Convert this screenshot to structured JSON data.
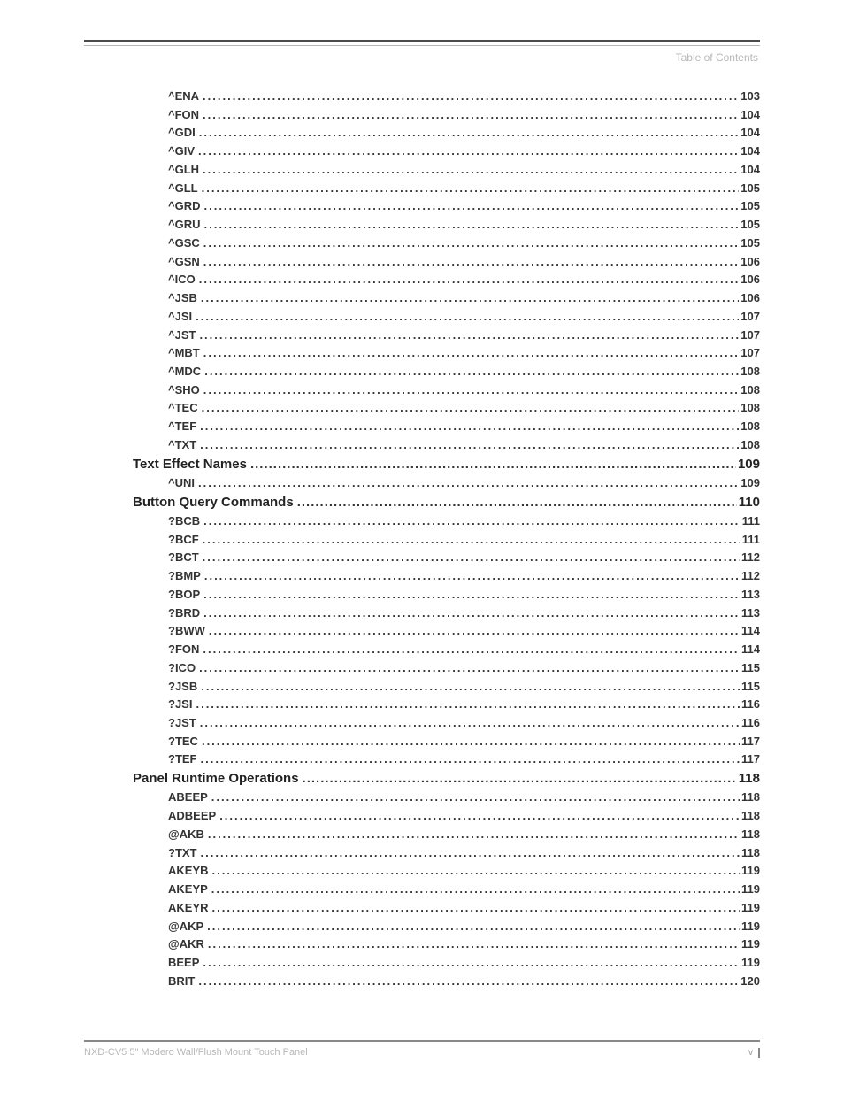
{
  "header": {
    "label": "Table of Contents"
  },
  "toc": {
    "entries": [
      {
        "level": 2,
        "label": "^ENA",
        "page": "103"
      },
      {
        "level": 2,
        "label": "^FON",
        "page": "104"
      },
      {
        "level": 2,
        "label": "^GDI",
        "page": "104"
      },
      {
        "level": 2,
        "label": "^GIV",
        "page": "104"
      },
      {
        "level": 2,
        "label": "^GLH",
        "page": "104"
      },
      {
        "level": 2,
        "label": "^GLL",
        "page": "105"
      },
      {
        "level": 2,
        "label": "^GRD",
        "page": "105"
      },
      {
        "level": 2,
        "label": "^GRU",
        "page": "105"
      },
      {
        "level": 2,
        "label": "^GSC",
        "page": "105"
      },
      {
        "level": 2,
        "label": "^GSN",
        "page": "106"
      },
      {
        "level": 2,
        "label": "^ICO",
        "page": "106"
      },
      {
        "level": 2,
        "label": "^JSB",
        "page": "106"
      },
      {
        "level": 2,
        "label": "^JSI",
        "page": "107"
      },
      {
        "level": 2,
        "label": "^JST",
        "page": "107"
      },
      {
        "level": 2,
        "label": "^MBT",
        "page": "107"
      },
      {
        "level": 2,
        "label": "^MDC",
        "page": "108"
      },
      {
        "level": 2,
        "label": "^SHO",
        "page": "108"
      },
      {
        "level": 2,
        "label": "^TEC",
        "page": "108"
      },
      {
        "level": 2,
        "label": "^TEF",
        "page": "108"
      },
      {
        "level": 2,
        "label": "^TXT",
        "page": "108"
      },
      {
        "level": 1,
        "label": "Text Effect Names",
        "page": "109"
      },
      {
        "level": 2,
        "label": "^UNI",
        "page": "109"
      },
      {
        "level": 1,
        "label": "Button Query Commands",
        "page": "110"
      },
      {
        "level": 2,
        "label": "?BCB",
        "page": "111"
      },
      {
        "level": 2,
        "label": "?BCF",
        "page": "111"
      },
      {
        "level": 2,
        "label": "?BCT",
        "page": "112"
      },
      {
        "level": 2,
        "label": "?BMP",
        "page": "112"
      },
      {
        "level": 2,
        "label": "?BOP",
        "page": "113"
      },
      {
        "level": 2,
        "label": "?BRD",
        "page": "113"
      },
      {
        "level": 2,
        "label": "?BWW",
        "page": "114"
      },
      {
        "level": 2,
        "label": "?FON",
        "page": "114"
      },
      {
        "level": 2,
        "label": "?ICO",
        "page": "115"
      },
      {
        "level": 2,
        "label": "?JSB",
        "page": "115"
      },
      {
        "level": 2,
        "label": "?JSI",
        "page": "116"
      },
      {
        "level": 2,
        "label": "?JST",
        "page": "116"
      },
      {
        "level": 2,
        "label": "?TEC",
        "page": "117"
      },
      {
        "level": 2,
        "label": "?TEF",
        "page": "117"
      },
      {
        "level": 1,
        "label": "Panel Runtime Operations",
        "page": "118"
      },
      {
        "level": 2,
        "label": "ABEEP",
        "page": "118"
      },
      {
        "level": 2,
        "label": "ADBEEP",
        "page": "118"
      },
      {
        "level": 2,
        "label": "@AKB",
        "page": "118"
      },
      {
        "level": 2,
        "label": "?TXT",
        "page": "118"
      },
      {
        "level": 2,
        "label": "AKEYB",
        "page": "119"
      },
      {
        "level": 2,
        "label": "AKEYP",
        "page": "119"
      },
      {
        "level": 2,
        "label": "AKEYR",
        "page": "119"
      },
      {
        "level": 2,
        "label": "@AKP",
        "page": "119"
      },
      {
        "level": 2,
        "label": "@AKR",
        "page": "119"
      },
      {
        "level": 2,
        "label": "BEEP",
        "page": "119"
      },
      {
        "level": 2,
        "label": "BRIT",
        "page": "120"
      }
    ]
  },
  "footer": {
    "product": "NXD-CV5 5\" Modero Wall/Flush Mount Touch Panel",
    "pagenum": "v"
  },
  "style": {
    "text_color": "#333333",
    "muted_color": "#b8b8b8",
    "rule_color": "#4a4a4a",
    "background": "#ffffff",
    "font_family": "Arial, Helvetica, sans-serif",
    "level2_fontsize": 13,
    "level1_fontsize": 15
  }
}
